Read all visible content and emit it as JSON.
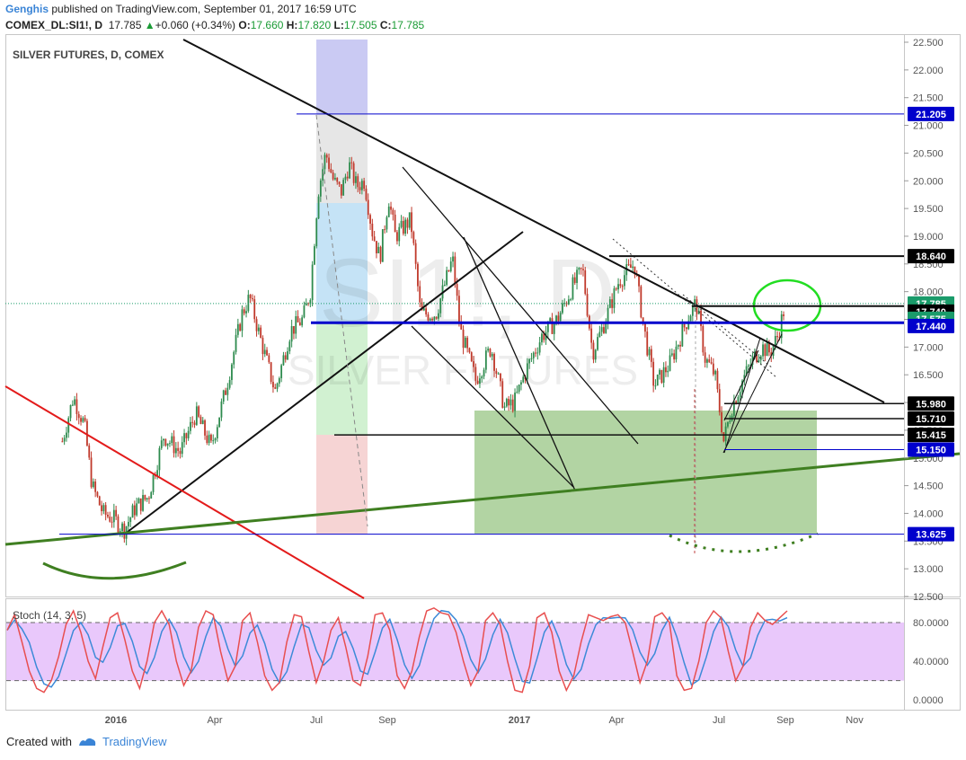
{
  "header": {
    "author": "Genghis",
    "published": "published on TradingView.com, September 01, 2017 16:59 UTC",
    "symbol": "COMEX_DL:SI1!, D",
    "last": "17.785",
    "change": "+0.060 (+0.34%)",
    "o_label": "O:",
    "o": "17.660",
    "h_label": "H:",
    "h": "17.820",
    "l_label": "L:",
    "l": "17.505",
    "c_label": "C:",
    "c": "17.785"
  },
  "footer": {
    "created_with": "Created with",
    "brand": "TradingView"
  },
  "colors": {
    "up": "#2e8b4e",
    "down": "#c0392b",
    "accent_blue": "#0000cc",
    "trend_green": "#3f7f21",
    "oval": "#22dd22",
    "stoch_fill": "#e9c8fb",
    "k_line": "#e84f4f",
    "d_line": "#3c8ad8",
    "price_tag": "#1a9b6a"
  },
  "chart_data": [
    {
      "type": "candlestick",
      "title": "SILVER FUTURES, D, COMEX",
      "watermark_symbol": "SI1!, D",
      "watermark_name": "SILVER FUTURES",
      "x_tick_labels": [
        "2016",
        "Apr",
        "Jul",
        "Sep",
        "2017",
        "Apr",
        "Jul",
        "Sep",
        "Nov"
      ],
      "y_ticks": [
        "22.500",
        "22.000",
        "21.500",
        "21.000",
        "20.500",
        "20.000",
        "19.500",
        "19.000",
        "18.500",
        "18.000",
        "17.500",
        "17.000",
        "16.500",
        "16.000",
        "15.500",
        "15.000",
        "14.500",
        "14.000",
        "13.500",
        "13.000",
        "12.500"
      ],
      "ylim": [
        12.5,
        22.5
      ],
      "grid": false,
      "last_price": 17.785,
      "price_levels": [
        {
          "label": "21.205",
          "value": 21.205
        },
        {
          "label": "18.640",
          "value": 18.64
        },
        {
          "label": "17.785",
          "value": 17.785
        },
        {
          "label": "17.740",
          "value": 17.74
        },
        {
          "label": "17.575",
          "value": 17.575
        },
        {
          "label": "17.440",
          "value": 17.44
        },
        {
          "label": "15.980",
          "value": 15.98
        },
        {
          "label": "15.710",
          "value": 15.71
        },
        {
          "label": "15.415",
          "value": 15.415
        },
        {
          "label": "15.150",
          "value": 15.15
        },
        {
          "label": "13.625",
          "value": 13.625
        }
      ],
      "price_path": [
        [
          "2015-11-15",
          15.3
        ],
        [
          "2015-11-25",
          16.1
        ],
        [
          "2015-12-05",
          15.6
        ],
        [
          "2015-12-12",
          14.5
        ],
        [
          "2015-12-22",
          14.0
        ],
        [
          "2016-01-01",
          13.9
        ],
        [
          "2016-01-10",
          13.7
        ],
        [
          "2016-01-20",
          14.1
        ],
        [
          "2016-02-01",
          14.3
        ],
        [
          "2016-02-15",
          15.4
        ],
        [
          "2016-03-01",
          15.1
        ],
        [
          "2016-03-15",
          15.8
        ],
        [
          "2016-03-29",
          15.2
        ],
        [
          "2016-04-12",
          16.3
        ],
        [
          "2016-04-26",
          17.6
        ],
        [
          "2016-05-03",
          17.9
        ],
        [
          "2016-05-12",
          17.2
        ],
        [
          "2016-05-26",
          16.2
        ],
        [
          "2016-06-09",
          17.3
        ],
        [
          "2016-06-20",
          17.5
        ],
        [
          "2016-06-27",
          18.0
        ],
        [
          "2016-07-04",
          19.8
        ],
        [
          "2016-07-11",
          20.5
        ],
        [
          "2016-07-18",
          20.0
        ],
        [
          "2016-07-25",
          19.8
        ],
        [
          "2016-08-01",
          20.3
        ],
        [
          "2016-08-08",
          19.9
        ],
        [
          "2016-08-15",
          20.0
        ],
        [
          "2016-08-22",
          19.1
        ],
        [
          "2016-08-29",
          18.6
        ],
        [
          "2016-09-06",
          19.7
        ],
        [
          "2016-09-12",
          19.0
        ],
        [
          "2016-09-26",
          19.3
        ],
        [
          "2016-10-05",
          17.6
        ],
        [
          "2016-10-19",
          17.6
        ],
        [
          "2016-11-03",
          18.6
        ],
        [
          "2016-11-10",
          17.3
        ],
        [
          "2016-11-24",
          16.4
        ],
        [
          "2016-12-08",
          17.0
        ],
        [
          "2016-12-20",
          15.9
        ],
        [
          "2016-12-29",
          16.0
        ],
        [
          "2017-01-09",
          16.6
        ],
        [
          "2017-01-23",
          17.2
        ],
        [
          "2017-02-06",
          17.5
        ],
        [
          "2017-02-20",
          18.1
        ],
        [
          "2017-03-01",
          18.4
        ],
        [
          "2017-03-10",
          16.9
        ],
        [
          "2017-03-20",
          17.4
        ],
        [
          "2017-04-03",
          18.2
        ],
        [
          "2017-04-17",
          18.5
        ],
        [
          "2017-04-25",
          17.4
        ],
        [
          "2017-05-05",
          16.3
        ],
        [
          "2017-05-19",
          16.7
        ],
        [
          "2017-06-06",
          17.6
        ],
        [
          "2017-06-12",
          17.8
        ],
        [
          "2017-06-20",
          16.8
        ],
        [
          "2017-06-29",
          16.5
        ],
        [
          "2017-07-07",
          15.3
        ],
        [
          "2017-07-14",
          15.9
        ],
        [
          "2017-07-24",
          16.4
        ],
        [
          "2017-08-03",
          16.8
        ],
        [
          "2017-08-11",
          17.0
        ],
        [
          "2017-08-18",
          16.9
        ],
        [
          "2017-08-25",
          17.2
        ],
        [
          "2017-09-01",
          17.785
        ]
      ]
    },
    {
      "type": "line",
      "title": "Stoch (14, 3, 5)",
      "y_ticks": [
        "80.0000",
        "40.0000",
        "0.0000"
      ],
      "ylim": [
        -10,
        105
      ],
      "band": [
        20,
        80
      ],
      "series": [
        {
          "name": "%K",
          "role": "k"
        },
        {
          "name": "%D",
          "role": "d"
        }
      ],
      "values_k": [
        72,
        88,
        60,
        30,
        12,
        8,
        20,
        45,
        78,
        92,
        70,
        40,
        22,
        55,
        85,
        90,
        62,
        30,
        12,
        40,
        80,
        92,
        78,
        40,
        15,
        30,
        75,
        92,
        88,
        50,
        20,
        35,
        82,
        90,
        60,
        25,
        10,
        18,
        60,
        88,
        86,
        50,
        18,
        40,
        72,
        85,
        55,
        20,
        15,
        45,
        88,
        90,
        72,
        25,
        12,
        30,
        65,
        92,
        95,
        90,
        88,
        70,
        40,
        15,
        30,
        82,
        90,
        78,
        40,
        10,
        8,
        35,
        85,
        90,
        70,
        30,
        10,
        25,
        60,
        88,
        85,
        82,
        86,
        88,
        80,
        50,
        18,
        40,
        86,
        90,
        80,
        25,
        10,
        12,
        40,
        80,
        92,
        85,
        50,
        20,
        35,
        75,
        90,
        82,
        78,
        85,
        92
      ]
    }
  ]
}
